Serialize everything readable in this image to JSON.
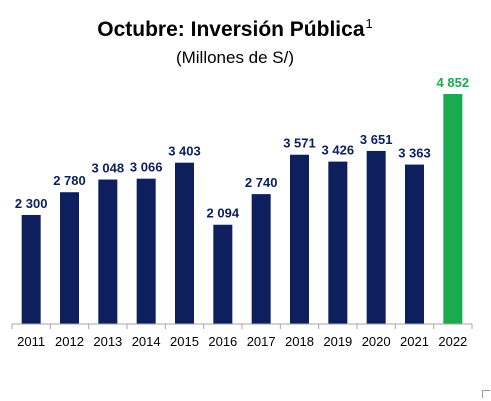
{
  "chart_data": {
    "type": "bar",
    "title": "Octubre: Inversión Pública",
    "title_superscript": "1",
    "subtitle": "(Millones de S/)",
    "categories": [
      "2011",
      "2012",
      "2013",
      "2014",
      "2015",
      "2016",
      "2017",
      "2018",
      "2019",
      "2020",
      "2021",
      "2022"
    ],
    "values": [
      2300,
      2780,
      3048,
      3066,
      3403,
      2094,
      2740,
      3571,
      3426,
      3651,
      3363,
      4852
    ],
    "value_labels": [
      "2 300",
      "2 780",
      "3 048",
      "3 066",
      "3 403",
      "2 094",
      "2 740",
      "3 571",
      "3 426",
      "3 651",
      "3 363",
      "4 852"
    ],
    "xlabel": "",
    "ylabel": "",
    "ylim": [
      0,
      4852
    ],
    "grid": false,
    "legend": "none",
    "colors": {
      "bar": "#0d1f5c",
      "highlight": "#1aaa4f",
      "axis": "#a6a6a6",
      "label": "#0d1f5c",
      "highlight_label": "#1aaa4f"
    },
    "highlight_index": 11
  }
}
